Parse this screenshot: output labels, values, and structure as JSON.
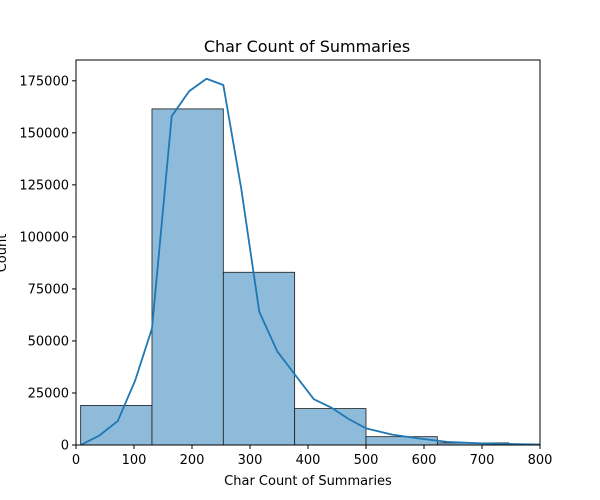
{
  "chart_data": {
    "type": "bar",
    "title": "Char Count of Summaries",
    "xlabel": "Char Count of Summaries",
    "ylabel": "Count",
    "xlim": [
      0,
      800
    ],
    "ylim": [
      0,
      185000
    ],
    "x_ticks": [
      0,
      100,
      200,
      300,
      400,
      500,
      600,
      700,
      800
    ],
    "y_ticks": [
      0,
      25000,
      50000,
      75000,
      100000,
      125000,
      150000,
      175000
    ],
    "grid": false,
    "bins": [
      {
        "start": 8,
        "end": 131,
        "count": 19000
      },
      {
        "start": 131,
        "end": 254,
        "count": 161500
      },
      {
        "start": 254,
        "end": 377,
        "count": 83000
      },
      {
        "start": 377,
        "end": 500,
        "count": 17500
      },
      {
        "start": 500,
        "end": 623,
        "count": 4000
      },
      {
        "start": 623,
        "end": 746,
        "count": 1000
      },
      {
        "start": 746,
        "end": 800,
        "count": 300
      }
    ],
    "kde": {
      "x": [
        8,
        40,
        72,
        102,
        131,
        165,
        195,
        225,
        254,
        285,
        316,
        347,
        377,
        410,
        440,
        470,
        500,
        545,
        590,
        640,
        700,
        760,
        800
      ],
      "y": [
        0,
        4500,
        11500,
        31000,
        56000,
        158000,
        170000,
        176000,
        173000,
        123000,
        64000,
        45000,
        34000,
        22000,
        18000,
        12500,
        8000,
        5000,
        3200,
        1500,
        800,
        400,
        200
      ]
    },
    "colors": {
      "bar_fill": "#8fbbda",
      "bar_edge": "#1a1a1a",
      "kde_line": "#1f77b4",
      "axis": "#000000"
    }
  }
}
